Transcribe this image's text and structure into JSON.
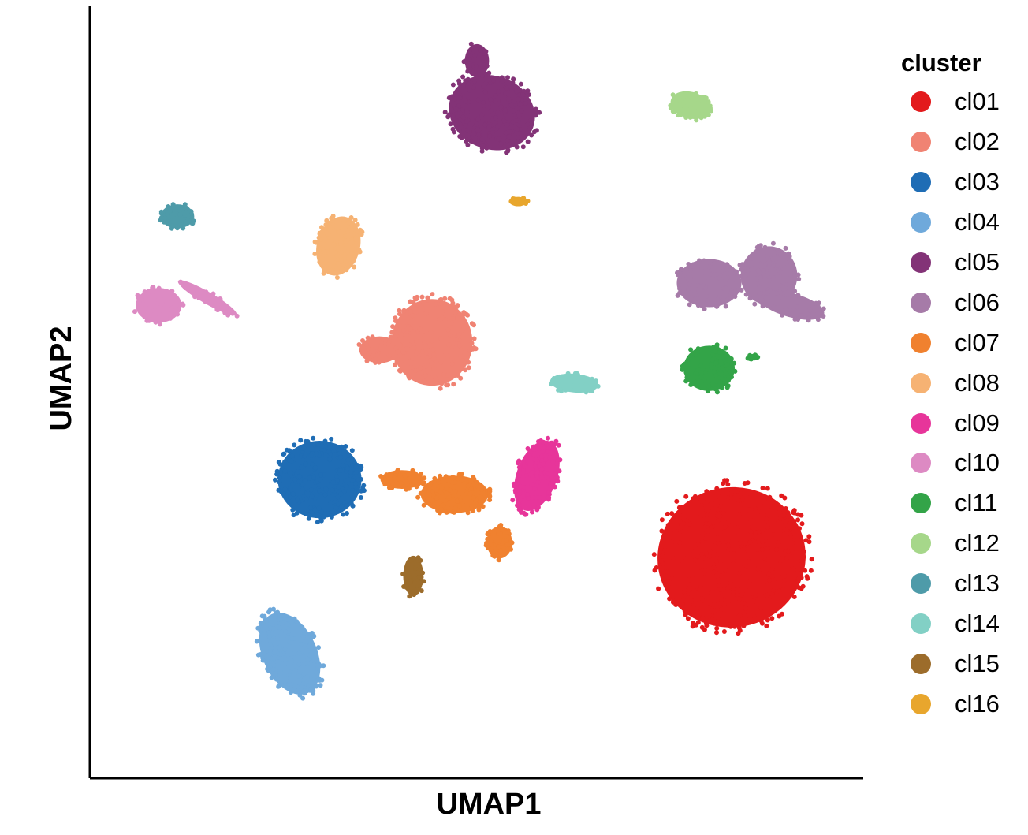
{
  "chart_data": {
    "type": "scatter",
    "title": "",
    "xlabel": "UMAP1",
    "ylabel": "UMAP2",
    "xlim": [
      0,
      100
    ],
    "ylim": [
      0,
      100
    ],
    "grid": false,
    "legend_placement": "right",
    "legend_title": "cluster",
    "point_size": 3,
    "series": [
      {
        "name": "cl01",
        "color": "#E31A1C",
        "blobs": [
          {
            "x": 84,
            "y": 28,
            "rx": 11,
            "ry": 10.5,
            "n": 420,
            "r": 9
          }
        ]
      },
      {
        "name": "cl02",
        "color": "#F08373",
        "blobs": [
          {
            "x": 44,
            "y": 57,
            "rx": 6,
            "ry": 6.5,
            "n": 170,
            "r": 0
          },
          {
            "x": 37,
            "y": 56,
            "rx": 3,
            "ry": 2,
            "n": 30,
            "r": 0
          }
        ]
      },
      {
        "name": "cl03",
        "color": "#1F6DB5",
        "blobs": [
          {
            "x": 29,
            "y": 38.5,
            "rx": 6.2,
            "ry": 5.8,
            "n": 230,
            "r": 0
          }
        ]
      },
      {
        "name": "cl04",
        "color": "#6FA9DB",
        "blobs": [
          {
            "x": 25,
            "y": 15,
            "rx": 4,
            "ry": 6.5,
            "n": 170,
            "r": 25
          }
        ]
      },
      {
        "name": "cl05",
        "color": "#833377",
        "blobs": [
          {
            "x": 52,
            "y": 88,
            "rx": 6.5,
            "ry": 5.5,
            "n": 200,
            "r": -20
          },
          {
            "x": 50,
            "y": 95,
            "rx": 1.8,
            "ry": 2.5,
            "n": 20,
            "r": 0
          }
        ]
      },
      {
        "name": "cl06",
        "color": "#A67BA8",
        "blobs": [
          {
            "x": 81,
            "y": 65,
            "rx": 4.8,
            "ry": 3.6,
            "n": 75,
            "r": 0
          },
          {
            "x": 89,
            "y": 66,
            "rx": 4.2,
            "ry": 4.4,
            "n": 90,
            "r": 0
          },
          {
            "x": 92,
            "y": 62,
            "rx": 5,
            "ry": 1.8,
            "n": 40,
            "r": -15
          }
        ]
      },
      {
        "name": "cl07",
        "color": "#F0812F",
        "blobs": [
          {
            "x": 47,
            "y": 36.5,
            "rx": 5,
            "ry": 2.8,
            "n": 110,
            "r": 0
          },
          {
            "x": 40,
            "y": 38.5,
            "rx": 3.2,
            "ry": 1.4,
            "n": 40,
            "r": 0
          },
          {
            "x": 53,
            "y": 30,
            "rx": 1.9,
            "ry": 2.4,
            "n": 45,
            "r": 0
          }
        ]
      },
      {
        "name": "cl08",
        "color": "#F6B273",
        "blobs": [
          {
            "x": 31.5,
            "y": 70,
            "rx": 3.2,
            "ry": 4.5,
            "n": 120,
            "r": -15
          }
        ]
      },
      {
        "name": "cl09",
        "color": "#E7359A",
        "blobs": [
          {
            "x": 58,
            "y": 39,
            "rx": 3,
            "ry": 5.5,
            "n": 120,
            "r": -20
          }
        ]
      },
      {
        "name": "cl10",
        "color": "#DD8AC3",
        "blobs": [
          {
            "x": 7.5,
            "y": 62,
            "rx": 3.4,
            "ry": 2.6,
            "n": 80,
            "r": 0
          },
          {
            "x": 14,
            "y": 63,
            "rx": 5,
            "ry": 0.9,
            "n": 35,
            "r": -30
          }
        ]
      },
      {
        "name": "cl11",
        "color": "#33A448",
        "blobs": [
          {
            "x": 81,
            "y": 53.5,
            "rx": 3.8,
            "ry": 3.4,
            "n": 90,
            "r": 0
          },
          {
            "x": 87,
            "y": 55,
            "rx": 0.9,
            "ry": 0.5,
            "n": 8,
            "r": 0
          }
        ]
      },
      {
        "name": "cl12",
        "color": "#A6D78A",
        "blobs": [
          {
            "x": 78.5,
            "y": 89,
            "rx": 3,
            "ry": 2,
            "n": 50,
            "r": -15
          }
        ]
      },
      {
        "name": "cl13",
        "color": "#4E9BA9",
        "blobs": [
          {
            "x": 10,
            "y": 74,
            "rx": 2.5,
            "ry": 1.8,
            "n": 50,
            "r": 0
          }
        ]
      },
      {
        "name": "cl14",
        "color": "#82D0C5",
        "blobs": [
          {
            "x": 63,
            "y": 51.5,
            "rx": 3.6,
            "ry": 1.4,
            "n": 40,
            "r": -5
          }
        ]
      },
      {
        "name": "cl15",
        "color": "#9C6C2B",
        "blobs": [
          {
            "x": 41.5,
            "y": 25.5,
            "rx": 1.5,
            "ry": 3,
            "n": 40,
            "r": 0
          }
        ]
      },
      {
        "name": "cl16",
        "color": "#E8A62D",
        "blobs": [
          {
            "x": 55.5,
            "y": 76,
            "rx": 1.3,
            "ry": 0.7,
            "n": 12,
            "r": 0
          }
        ]
      }
    ]
  }
}
